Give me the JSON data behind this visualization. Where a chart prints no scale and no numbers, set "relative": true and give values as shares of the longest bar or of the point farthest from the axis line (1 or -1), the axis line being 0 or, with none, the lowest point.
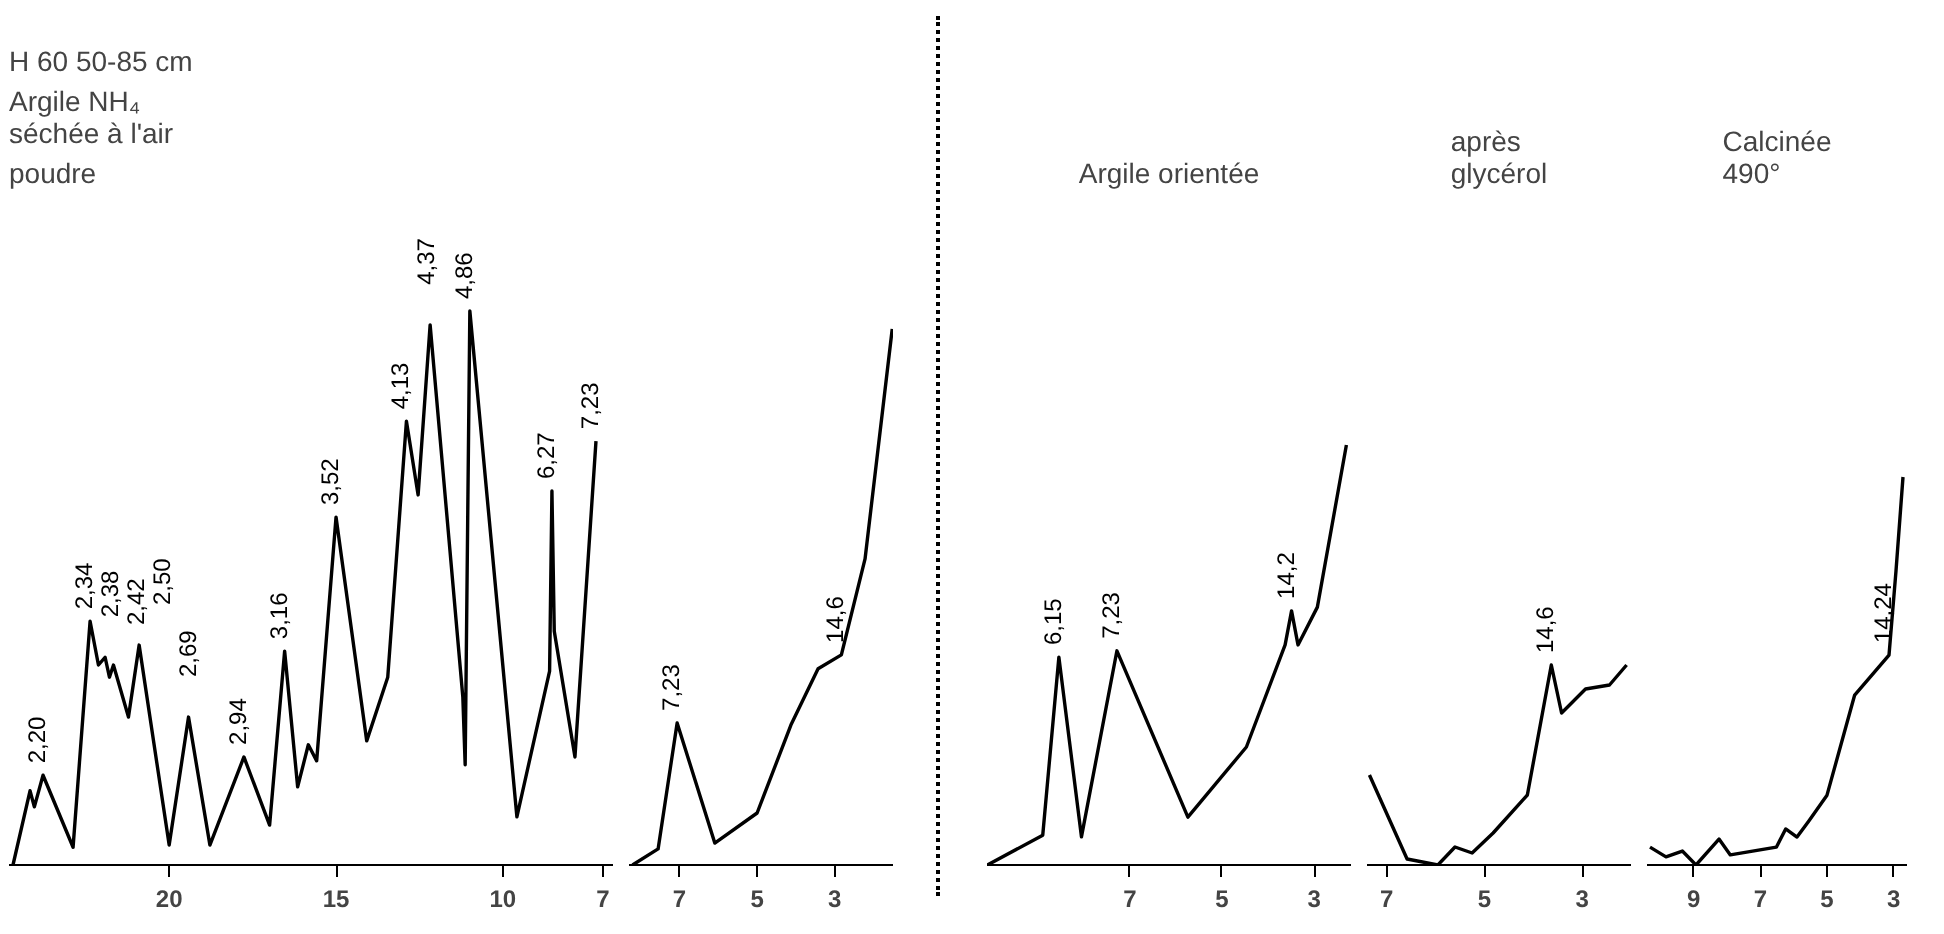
{
  "chart_data": [
    {
      "type": "line",
      "relative": true,
      "title": "H 60   50-85 cm",
      "subtitle": "Argile NH₄\nséchée à l'air",
      "tick_labels": "x",
      "xlim": [
        24.8,
        6.7
      ],
      "xticks": [
        20,
        15,
        10,
        7
      ],
      "x": [
        24.68,
        24.17,
        24.04,
        23.78,
        22.88,
        22.37,
        22.12,
        21.92,
        21.79,
        21.67,
        21.22,
        20.9,
        20.0,
        19.42,
        18.78,
        17.76,
        16.99,
        16.54,
        16.15,
        15.83,
        15.58,
        15.0,
        14.08,
        13.45,
        12.89,
        12.54,
        12.18,
        11.2,
        11.13,
        10.99,
        9.58,
        8.6,
        8.53,
        8.46,
        7.84,
        7.21
      ],
      "series": [
        {
          "color": "#000000",
          "values": [
            0,
            0.134,
            0.105,
            0.162,
            0.032,
            0.44,
            0.361,
            0.375,
            0.339,
            0.361,
            0.267,
            0.397,
            0.036,
            0.267,
            0.036,
            0.195,
            0.072,
            0.386,
            0.141,
            0.217,
            0.188,
            0.628,
            0.224,
            0.339,
            0.801,
            0.668,
            0.975,
            0.303,
            0.181,
            1.0,
            0.087,
            0.35,
            0.675,
            0.422,
            0.195,
            0.765
          ]
        }
      ],
      "annotations": [
        "poudre",
        {
          "text": "2,20",
          "x": 23.78,
          "y": 0.162
        },
        {
          "text": "2,34",
          "x": 22.37,
          "y": 0.44
        },
        {
          "text": "2,38",
          "x": 21.92,
          "y": 0.375
        },
        {
          "text": "2,42",
          "x": 21.67,
          "y": 0.361
        },
        {
          "text": "2,50",
          "x": 20.9,
          "y": 0.397
        },
        {
          "text": "2,69",
          "x": 19.42,
          "y": 0.267
        },
        {
          "text": "2,94",
          "x": 17.76,
          "y": 0.195
        },
        {
          "text": "3,16",
          "x": 16.54,
          "y": 0.386
        },
        {
          "text": "3,52",
          "x": 15.0,
          "y": 0.628
        },
        {
          "text": "4,13",
          "x": 12.89,
          "y": 0.801
        },
        {
          "text": "4,37",
          "x": 12.18,
          "y": 0.975
        },
        {
          "text": "4,86",
          "x": 10.99,
          "y": 1.0
        },
        {
          "text": "6,27",
          "x": 8.53,
          "y": 0.675
        },
        {
          "text": "7,23",
          "x": 7.21,
          "y": 0.765
        }
      ]
    },
    {
      "type": "line",
      "relative": true,
      "tick_labels": "x",
      "xlim": [
        8.3,
        1.5
      ],
      "xticks": [
        7,
        5,
        3
      ],
      "x": [
        8.21,
        7.55,
        7.06,
        6.09,
        5.0,
        4.13,
        3.43,
        2.83,
        2.22,
        1.52
      ],
      "series": [
        {
          "color": "#000000",
          "values": [
            0,
            0.03,
            0.265,
            0.041,
            0.097,
            0.261,
            0.366,
            0.392,
            0.571,
            1.0
          ]
        }
      ],
      "annotations": [
        {
          "text": "7,23",
          "x": 7.06,
          "y": 0.265
        },
        {
          "text": "14,6",
          "x": 2.83,
          "y": 0.392
        }
      ]
    },
    {
      "type": "line",
      "relative": true,
      "title": "Argile orientée",
      "tick_labels": "x",
      "xlim": [
        10.1,
        2.2
      ],
      "xticks": [
        7,
        5,
        3
      ],
      "x": [
        10.09,
        8.89,
        8.54,
        8.05,
        7.28,
        5.74,
        4.47,
        3.63,
        3.49,
        3.35,
        2.93,
        2.3
      ],
      "series": [
        {
          "color": "#000000",
          "values": [
            0,
            0.071,
            0.495,
            0.067,
            0.51,
            0.114,
            0.281,
            0.524,
            0.605,
            0.524,
            0.614,
            1.0
          ]
        }
      ],
      "annotations": [
        {
          "text": "6,15",
          "x": 8.54,
          "y": 0.495
        },
        {
          "text": "7,23",
          "x": 7.28,
          "y": 0.51
        },
        {
          "text": "14,2",
          "x": 3.49,
          "y": 0.605
        }
      ]
    },
    {
      "type": "line",
      "relative": true,
      "title": "après\nglycérol",
      "tick_labels": "x",
      "xlim": [
        7.4,
        2.0
      ],
      "xticks": [
        7,
        5,
        3
      ],
      "x": [
        7.35,
        6.58,
        5.95,
        5.6,
        5.25,
        4.82,
        4.12,
        3.63,
        3.42,
        2.93,
        2.44,
        2.09
      ],
      "series": [
        {
          "color": "#000000",
          "values": [
            0.45,
            0.03,
            0,
            0.09,
            0.06,
            0.16,
            0.35,
            1.0,
            0.76,
            0.88,
            0.9,
            1.0
          ]
        }
      ],
      "annotations": [
        {
          "text": "14,6",
          "x": 3.63,
          "y": 1.0
        }
      ]
    },
    {
      "type": "line",
      "relative": true,
      "title": "Calcinée\n490°",
      "tick_labels": "x",
      "xlim": [
        10.4,
        2.6
      ],
      "xticks": [
        9,
        7,
        5,
        3
      ],
      "x": [
        10.31,
        9.83,
        9.34,
        8.93,
        8.24,
        7.9,
        6.52,
        6.24,
        5.9,
        5.55,
        5.0,
        4.17,
        3.14,
        2.93,
        2.72
      ],
      "series": [
        {
          "color": "#000000",
          "values": [
            0.046,
            0.021,
            0.036,
            0,
            0.067,
            0.026,
            0.046,
            0.093,
            0.072,
            0.113,
            0.18,
            0.438,
            0.541,
            0.758,
            1.0
          ]
        }
      ],
      "annotations": [
        {
          "text": "14,24",
          "x": 3.14,
          "y": 0.541
        }
      ]
    }
  ]
}
